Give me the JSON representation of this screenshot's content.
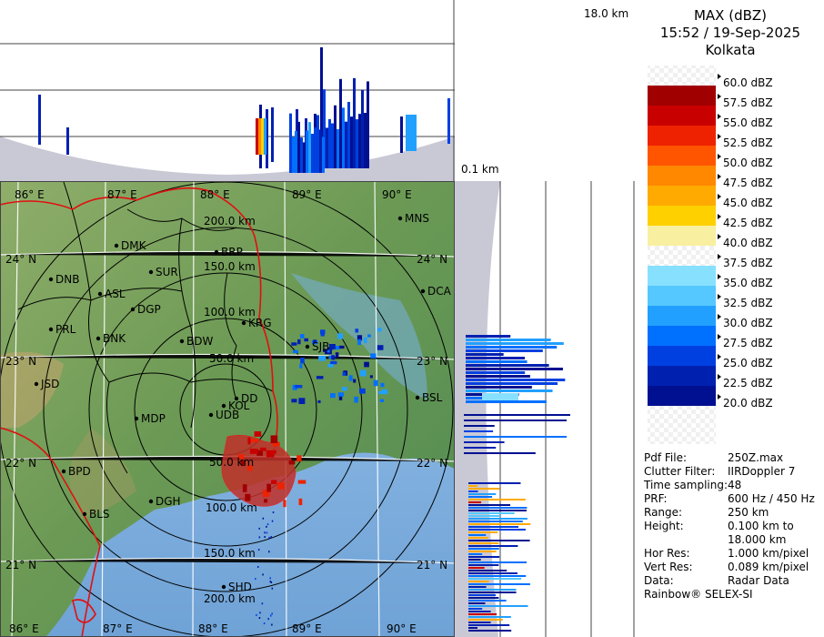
{
  "header": {
    "product": "MAX (dBZ)",
    "datetime": "15:52 / 19-Sep-2025",
    "station": "Kolkata",
    "top_height": "18.0 km",
    "bottom_height": "0.1 km"
  },
  "color_scale": [
    {
      "label": "60.0 dBZ",
      "color": "#ffffff"
    },
    {
      "label": "57.5 dBZ",
      "color": "#a00000"
    },
    {
      "label": "55.0 dBZ",
      "color": "#c80000"
    },
    {
      "label": "52.5 dBZ",
      "color": "#ee2200"
    },
    {
      "label": "50.0 dBZ",
      "color": "#ff5500"
    },
    {
      "label": "47.5 dBZ",
      "color": "#ff8800"
    },
    {
      "label": "45.0 dBZ",
      "color": "#ffaa00"
    },
    {
      "label": "42.5 dBZ",
      "color": "#ffd000"
    },
    {
      "label": "40.0 dBZ",
      "color": "#f8f0a0"
    },
    {
      "label": "37.5 dBZ",
      "color": "#ffffff"
    },
    {
      "label": "35.0 dBZ",
      "color": "#88e0ff"
    },
    {
      "label": "32.5 dBZ",
      "color": "#55c8ff"
    },
    {
      "label": "30.0 dBZ",
      "color": "#22a0ff"
    },
    {
      "label": "27.5 dBZ",
      "color": "#0070ff"
    },
    {
      "label": "25.0 dBZ",
      "color": "#0040e0"
    },
    {
      "label": "22.5 dBZ",
      "color": "#0020b0"
    },
    {
      "label": "20.0 dBZ",
      "color": "#001090"
    }
  ],
  "info": [
    {
      "key": "Pdf File:",
      "value": "250Z.max"
    },
    {
      "key": "Clutter Filter:",
      "value": "IIRDoppler 7"
    },
    {
      "key": "Time sampling:",
      "value": "48"
    },
    {
      "key": "PRF:",
      "value": "600 Hz / 450 Hz"
    },
    {
      "key": "Range:",
      "value": "250 km"
    },
    {
      "key": "Height:",
      "value": "0.100 km to"
    },
    {
      "key": "",
      "value": "18.000 km"
    },
    {
      "key": "Hor Res:",
      "value": "1.000 km/pixel"
    },
    {
      "key": "Vert Res:",
      "value": "0.089 km/pixel"
    },
    {
      "key": "Data:",
      "value": "Radar Data"
    }
  ],
  "footer": "Rainbow® SELEX-SI",
  "map": {
    "lon_labels": [
      "86° E",
      "87° E",
      "88° E",
      "89° E",
      "90° E"
    ],
    "lat_labels": [
      "24° N",
      "23° N",
      "22° N",
      "21° N"
    ],
    "range_labels": [
      "50.0 km",
      "100.0 km",
      "150.0 km",
      "200.0 km"
    ],
    "cities": [
      "MNS",
      "DMK",
      "BRP",
      "DNB",
      "SUR",
      "ASL",
      "DCA",
      "DGP",
      "KRG",
      "PRL",
      "BNK",
      "BDW",
      "SJB",
      "BSL",
      "JSD",
      "DD",
      "KOL",
      "MDP",
      "UDB",
      "BPD",
      "DGH",
      "BLS",
      "SHD"
    ]
  },
  "colors": {
    "land": "#6e9a58",
    "sea": "#86b4e0",
    "district_border": "#000000",
    "state_border": "#e01010",
    "panel_bg": "#c8c8d8"
  }
}
